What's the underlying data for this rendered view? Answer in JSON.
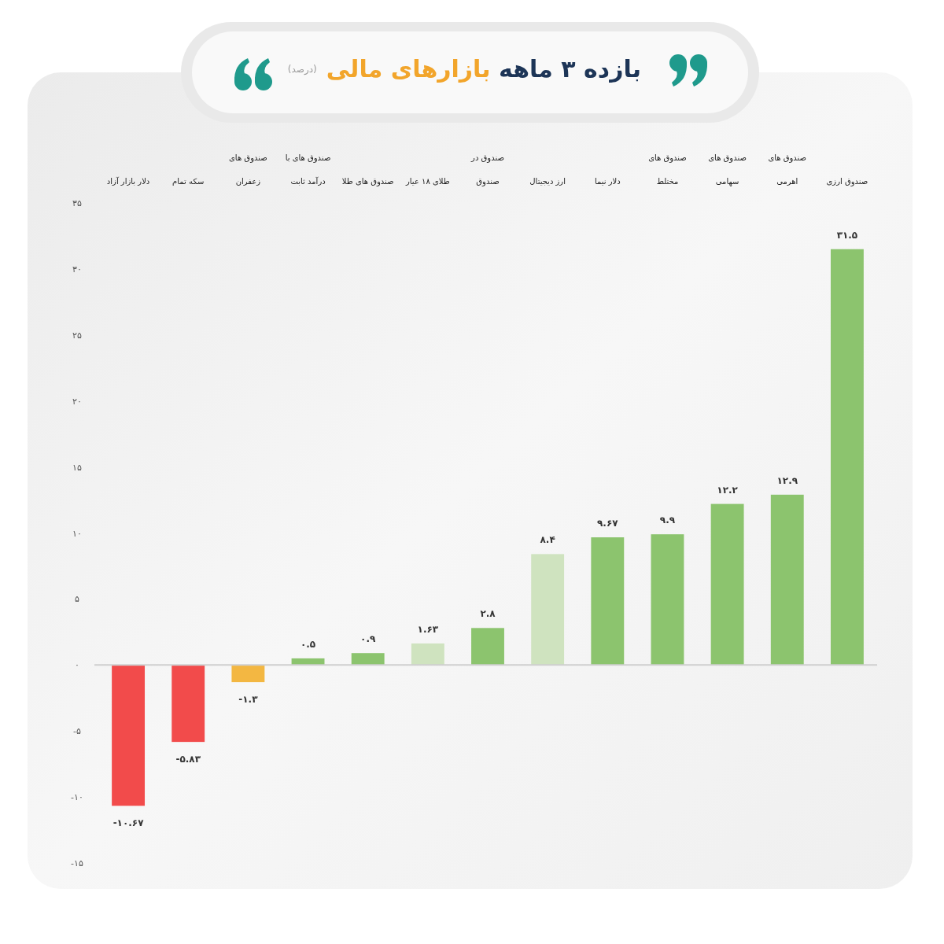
{
  "chart_data": {
    "type": "bar",
    "title": "بازده ۳ ماهه بازارهای مالی",
    "subtitle": "(درصد)",
    "categories": [
      "دلار بازار آزاد",
      "سکه تمام",
      "صندوق های\nزعفران",
      "صندوق های با\nدرآمد ثابت",
      "صندوق های طلا",
      "طلای ۱۸ عیار",
      "صندوق در\nصندوق",
      "ارز دیجیتال",
      "دلار نیما",
      "صندوق های\nمختلط",
      "صندوق های\nسهامی",
      "صندوق های\nاهرمی",
      "صندوق ارزی"
    ],
    "values": [
      -10.67,
      -5.83,
      -1.3,
      0.5,
      0.9,
      1.63,
      2.8,
      8.4,
      9.67,
      9.9,
      12.2,
      12.9,
      31.5
    ],
    "colors": [
      "#f24b4b",
      "#f24b4b",
      "#f3b742",
      "#8cc46e",
      "#8cc46e",
      "#cfe3bf",
      "#8cc46e",
      "#cfe3bf",
      "#8cc46e",
      "#8cc46e",
      "#8cc46e",
      "#8cc46e",
      "#8cc46e"
    ],
    "value_labels": [
      "-۱۰.۶۷",
      "-۵.۸۳",
      "-۱.۳",
      "۰.۵",
      "۰.۹",
      "۱.۶۳",
      "۲.۸",
      "۸.۴",
      "۹.۶۷",
      "۹.۹",
      "۱۲.۲",
      "۱۲.۹",
      "۳۱.۵"
    ],
    "ylim": [
      -15,
      35
    ],
    "yticks": [
      {
        "value": 35,
        "label": "۳۵"
      },
      {
        "value": 30,
        "label": "۳۰"
      },
      {
        "value": 25,
        "label": "۲۵"
      },
      {
        "value": 20,
        "label": "۲۰"
      },
      {
        "value": 15,
        "label": "۱۵"
      },
      {
        "value": 10,
        "label": "۱۰"
      },
      {
        "value": 5,
        "label": "۵"
      },
      {
        "value": 0,
        "label": "۰"
      },
      {
        "value": -5,
        "label": "-۵"
      },
      {
        "value": -10,
        "label": "-۱۰"
      },
      {
        "value": -15,
        "label": "-۱۵"
      }
    ]
  }
}
